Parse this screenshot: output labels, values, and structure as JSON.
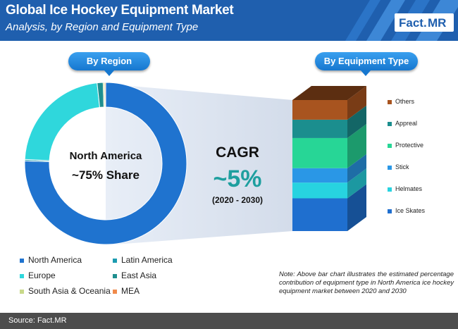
{
  "header": {
    "title": "Global Ice Hockey Equipment Market",
    "subtitle": "Analysis, by Region and Equipment Type",
    "logo_left": "Fact.",
    "logo_right": "MR"
  },
  "pills": {
    "region": "By Region",
    "equipment": "By Equipment Type"
  },
  "donut_center": {
    "line1": "North America",
    "line2": "~75% Share"
  },
  "cagr": {
    "label": "CAGR",
    "value": "~5%",
    "period": "(2020 - 2030)"
  },
  "note": "Note: Above bar chart illustrates the estimated percentage contribution of equipment type in North America ice hockey equipment market between 2020 and 2030",
  "footer": "Source: Fact.MR",
  "colors": {
    "header": "#1f5fae",
    "north_america": "#1f73cf",
    "latin_america": "#1b9bb0",
    "europe": "#2fd7dc",
    "east_asia": "#1f8f8f",
    "south_asia_oceania": "#c9d98a",
    "mea": "#f08a4b"
  },
  "chart_data": [
    {
      "type": "pie",
      "variant": "donut",
      "series": [
        {
          "name": "North America",
          "value": 75.5,
          "color": "#1f73cf"
        },
        {
          "name": "Latin America",
          "value": 0.3,
          "color": "#1b9bb0"
        },
        {
          "name": "Europe",
          "value": 22.5,
          "color": "#2fd7dc"
        },
        {
          "name": "East Asia",
          "value": 1.2,
          "color": "#1f8f8f"
        },
        {
          "name": "South Asia & Oceania",
          "value": 0.3,
          "color": "#c9d98a"
        },
        {
          "name": "MEA",
          "value": 0.2,
          "color": "#f08a4b"
        }
      ],
      "legend": [
        "North America",
        "Latin America",
        "Europe",
        "East Asia",
        "South Asia & Oceania",
        "MEA"
      ],
      "legend_placement": "bottom-left"
    },
    {
      "type": "bar",
      "variant": "stacked-100",
      "categories": [
        "North America"
      ],
      "series": [
        {
          "name": "Ice Skates",
          "values": [
            25
          ],
          "color": "#1f6fcf"
        },
        {
          "name": "Helmates",
          "values": [
            12
          ],
          "color": "#27d3e0"
        },
        {
          "name": "Stick",
          "values": [
            11
          ],
          "color": "#2a97e6"
        },
        {
          "name": "Protective",
          "values": [
            23
          ],
          "color": "#27d696"
        },
        {
          "name": "Appreal",
          "values": [
            14
          ],
          "color": "#1b8e8e"
        },
        {
          "name": "Others",
          "values": [
            15
          ],
          "color": "#a8541f"
        }
      ],
      "ylim": [
        0,
        100
      ],
      "legend_placement": "right"
    }
  ]
}
